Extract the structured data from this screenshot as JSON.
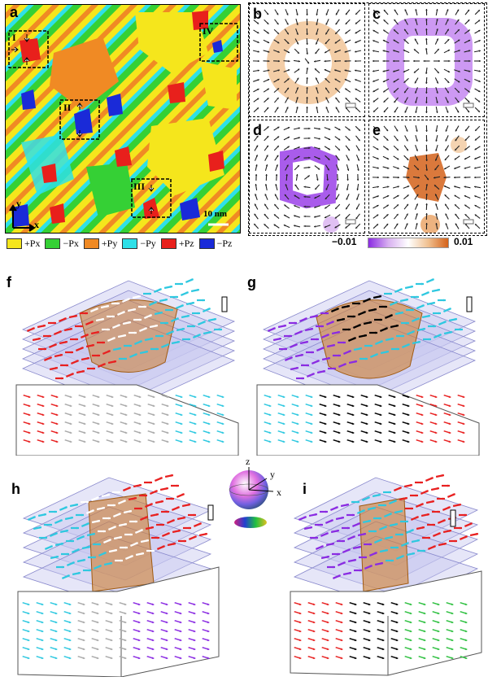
{
  "panel_labels": {
    "a": "a",
    "b": "b",
    "c": "c",
    "d": "d",
    "e": "e",
    "f": "f",
    "g": "g",
    "h": "h",
    "i": "i"
  },
  "panel_a": {
    "roman_labels": [
      "I",
      "II",
      "III",
      "IV"
    ],
    "scale_bar": "10 nm",
    "axis_y": "y",
    "axis_x": "x"
  },
  "legend": [
    {
      "label": "+Px",
      "color": "#f5e61c"
    },
    {
      "label": "−Px",
      "color": "#35d035"
    },
    {
      "label": "+Py",
      "color": "#f08a24"
    },
    {
      "label": "−Py",
      "color": "#2ee0e8"
    },
    {
      "label": "+Pz",
      "color": "#e8201c"
    },
    {
      "label": "−Pz",
      "color": "#1a2ad8"
    }
  ],
  "colorbar": {
    "min": "−0.01",
    "max": "0.01",
    "low_color": "#8a2be2",
    "high_color": "#d4621a"
  },
  "sphere_axes": {
    "z": "z",
    "y": "y",
    "x": "x"
  }
}
